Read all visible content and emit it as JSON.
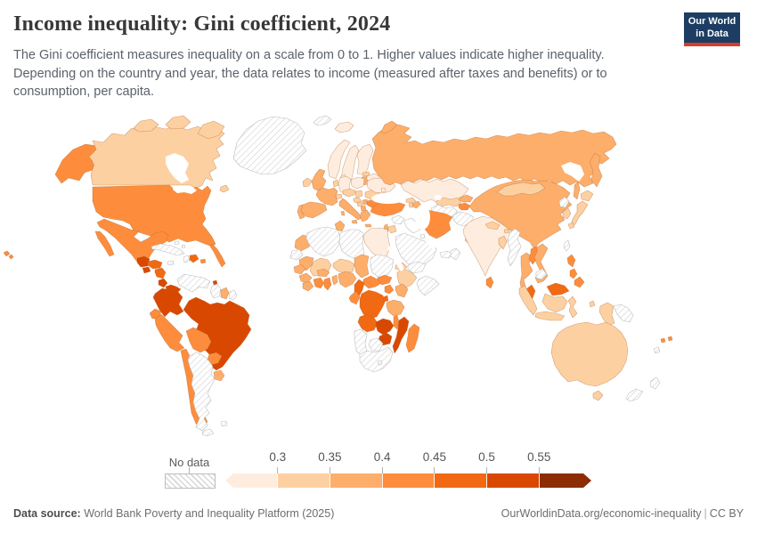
{
  "header": {
    "title": "Income inequality: Gini coefficient, 2024",
    "subtitle": "The Gini coefficient measures inequality on a scale from 0 to 1. Higher values indicate higher inequality. Depending on the country and year, the data relates to income (measured after taxes and benefits) or to consumption, per capita.",
    "logo": {
      "line1": "Our World",
      "line2": "in Data",
      "bg": "#1d3d63",
      "accent": "#d73c2c"
    }
  },
  "legend": {
    "no_data_label": "No data"
  },
  "footer": {
    "source_label": "Data source:",
    "source_text": " World Bank Poverty and Inequality Platform (2025)",
    "link": "OurWorldinData.org/economic-inequality",
    "separator": "|",
    "license": "CC BY"
  },
  "chart_data": {
    "type": "choropleth",
    "title": "Income inequality: Gini coefficient, 2024",
    "subtitle": "The Gini coefficient measures inequality on a scale from 0 to 1. Higher values indicate higher inequality. Depending on the country and year, the data relates to income (measured after taxes and benefits) or to consumption, per capita.",
    "source": "World Bank Poverty and Inequality Platform (2025)",
    "tick_labels": [
      "0.3",
      "0.35",
      "0.4",
      "0.45",
      "0.5",
      "0.55"
    ],
    "bins": [
      {
        "range": "< 0.3",
        "color": "#feedde"
      },
      {
        "range": "0.3–0.35",
        "color": "#fdd0a2"
      },
      {
        "range": "0.35–0.4",
        "color": "#fdae6b"
      },
      {
        "range": "0.4–0.45",
        "color": "#fd8d3c"
      },
      {
        "range": "0.45–0.5",
        "color": "#f16913"
      },
      {
        "range": "0.5–0.55",
        "color": "#d94801"
      },
      {
        "range": "> 0.55",
        "color": "#8c2d04"
      }
    ],
    "no_data_label": "No data",
    "countries": {
      "united-states": "#fd8d3c",
      "canada": "#fdd0a2",
      "greenland": "no-data",
      "iceland": "#feedde",
      "mexico": "#fd8d3c",
      "guatemala": "#d94801",
      "el-salvador": "#d94801",
      "honduras": "#f16913",
      "nicaragua": "#f16913",
      "costa-rica": "#d94801",
      "panama": "#d94801",
      "cuba": "no-data",
      "haiti": "no-data",
      "dominican-republic": "#f16913",
      "jamaica": "no-data",
      "puerto-rico": "#fd8d3c",
      "bahamas": "no-data",
      "trinidad-and-tobago": "#d94801",
      "colombia": "#d94801",
      "venezuela": "no-data",
      "guyana": "no-data",
      "suriname": "#fdae6b",
      "french-guiana": "no-data",
      "ecuador": "#fd8d3c",
      "peru": "#fd8d3c",
      "brazil": "#d94801",
      "bolivia": "#fd8d3c",
      "paraguay": "#fd8d3c",
      "uruguay": "#fdae6b",
      "chile": "#fd8d3c",
      "argentina": "no-data",
      "tierra-del-fuego": "no-data",
      "falkland-islands": "no-data",
      "ireland": "#fdd0a2",
      "united-kingdom": "#fdae6b",
      "norway": "#feedde",
      "sweden": "#feedde",
      "finland": "#feedde",
      "denmark": "#feedde",
      "estonia": "#fdd0a2",
      "latvia": "#fdae6b",
      "lithuania": "#fdae6b",
      "poland": "#feedde",
      "germany": "#feedde",
      "netherlands-belgium": "#fdd0a2",
      "france": "#fdae6b",
      "spain": "#fdae6b",
      "portugal": "#fdae6b",
      "switzerland": "#fdd0a2",
      "austria-czechia": "#fdd0a2",
      "hungary-slovakia": "#fdd0a2",
      "italy": "#fdae6b",
      "slovenia-croatia": "#fdd0a2",
      "bosnia": "#fdd0a2",
      "serbia": "#fdae6b",
      "albania-north-macedonia": "#fdae6b",
      "greece": "#fdae6b",
      "crete": "#fdae6b",
      "sicily": "#fdae6b",
      "sardinia": "#fdae6b",
      "romania": "#fdd0a2",
      "bulgaria": "#fd8d3c",
      "moldova": "#feedde",
      "belarus": "#feedde",
      "ukraine": "#feedde",
      "russia": "#fdae6b",
      "svalbard": "no-data",
      "turkey": "#fd8d3c",
      "georgia": "#fdd0a2",
      "armenia": "#fdd0a2",
      "azerbaijan": "#fdae6b",
      "syria": "no-data",
      "iraq": "#ffffff",
      "jordan": "#fdd0a2",
      "israel": "#fdae6b",
      "saudi-arabia": "no-data",
      "kuwait": "no-data",
      "uae-qatar": "no-data",
      "oman": "no-data",
      "yemen": "no-data",
      "iran": "#fd8d3c",
      "afghanistan": "no-data",
      "turkmenistan": "no-data",
      "uzbekistan": "#fdd0a2",
      "kazakhstan": "#feedde",
      "kyrgyzstan": "#fdae6b",
      "tajikistan": "#fd8d3c",
      "pakistan": "#fdd0a2",
      "india": "#feedde",
      "nepal": "#fdd0a2",
      "bhutan": "#fdd0a2",
      "bangladesh": "#fdd0a2",
      "sri-lanka": "#fd8d3c",
      "myanmar": "no-data",
      "thailand": "#fdae6b",
      "laos": "#fd8d3c",
      "vietnam": "#fdae6b",
      "cambodia": "no-data",
      "malaysia": "#f16913",
      "malaysia-borneo": "#f16913",
      "indonesia": "#fdd0a2",
      "philippines": "#fd8d3c",
      "papua-new-guinea": "no-data",
      "indonesia-papua": "#fdd0a2",
      "china": "#fdae6b",
      "mongolia": "#fdd0a2",
      "north-korea": "no-data",
      "south-korea": "#fdd0a2",
      "japan": "#fdd0a2",
      "taiwan": "no-data",
      "australia": "#fdd0a2",
      "tasmania": "#fdd0a2",
      "new-zealand": "no-data",
      "fiji": "#fd8d3c",
      "new-caledonia": "no-data",
      "hawaii": "#fd8d3c",
      "morocco": "#fdae6b",
      "western-sahara": "no-data",
      "algeria": "no-data",
      "tunisia": "#fdae6b",
      "libya": "no-data",
      "egypt": "#feedde",
      "mauritania": "#fdae6b",
      "mali": "#fdd0a2",
      "senegal": "#fdae6b",
      "guinea": "#fdae6b",
      "sierra-leone-liberia": "#fdae6b",
      "cote-divoire": "#fd8d3c",
      "ghana": "#fd8d3c",
      "togo-benin": "#fdae6b",
      "burkina-faso": "#fdae6b",
      "niger": "#fdd0a2",
      "nigeria": "#fdae6b",
      "chad": "#fdae6b",
      "sudan": "no-data",
      "eritrea": "#fdd0a2",
      "ethiopia": "#fdd0a2",
      "somalia": "no-data",
      "south-sudan": "#fd8d3c",
      "central-african-republic": "#fd8d3c",
      "cameroon": "#f16913",
      "drc": "#f16913",
      "congo-gabon": "#fd8d3c",
      "uganda": "#fd8d3c",
      "kenya": "#fdae6b",
      "rwanda-burundi": "#f16913",
      "tanzania": "#fdae6b",
      "angola": "#f16913",
      "zambia": "#d94801",
      "malawi": "#fd8d3c",
      "mozambique": "#d94801",
      "zimbabwe": "#d94801",
      "botswana": "no-data",
      "namibia": "no-data",
      "south-africa": "no-data",
      "lesotho": "no-data",
      "madagascar": "#fd8d3c"
    }
  }
}
